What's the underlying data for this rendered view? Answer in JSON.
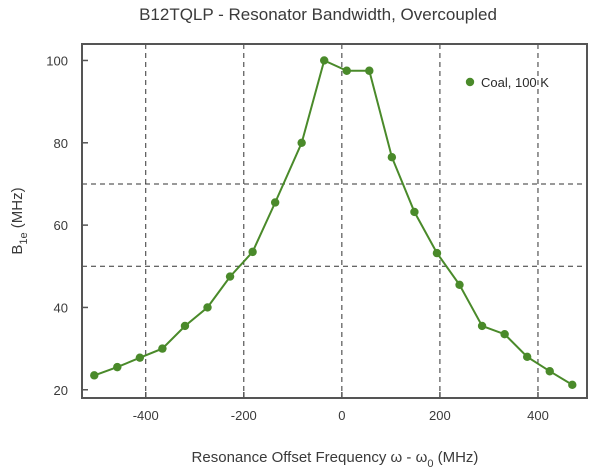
{
  "chart_data": {
    "type": "line",
    "title": "B12TQLP - Resonator Bandwidth, Overcoupled",
    "xlabel": {
      "prefix": "Resonance Offset Frequency ω - ω",
      "sub": "0",
      "suffix": " (MHz)"
    },
    "ylabel": {
      "prefix": "B",
      "sub": "1e",
      "suffix": " (MHz)"
    },
    "xlim": [
      -530,
      500
    ],
    "ylim": [
      18,
      104
    ],
    "xticks": [
      -400,
      -200,
      0,
      200,
      400
    ],
    "yticks": [
      20,
      40,
      60,
      80,
      100
    ],
    "x_grid": [
      -400,
      -200,
      0,
      200,
      400
    ],
    "y_grid": [
      50,
      70
    ],
    "legend_position": "top-right",
    "series": [
      {
        "name": "Coal, 100 K",
        "color": "#4a8a2a",
        "x": [
          -505,
          -458,
          -412,
          -366,
          -320,
          -274,
          -228,
          -182,
          -136,
          -82,
          -36,
          10,
          56,
          102,
          148,
          194,
          240,
          286,
          332,
          378,
          424,
          470
        ],
        "y": [
          23.5,
          25.5,
          27.8,
          30.0,
          35.5,
          40.0,
          47.5,
          53.5,
          65.5,
          80.0,
          100.0,
          97.5,
          97.5,
          76.5,
          63.2,
          53.2,
          45.5,
          35.5,
          33.5,
          28.0,
          24.5,
          21.2
        ]
      }
    ]
  }
}
